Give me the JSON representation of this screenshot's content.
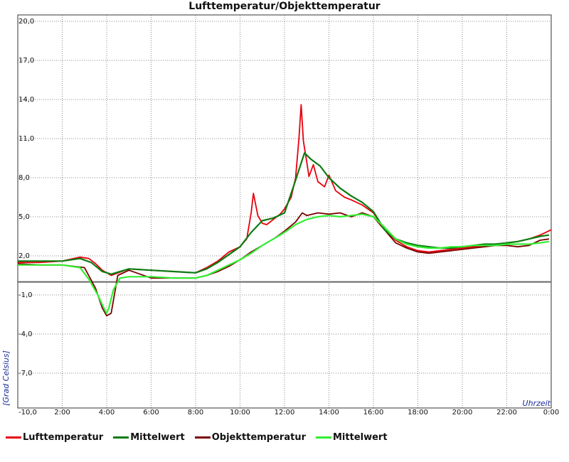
{
  "chart_data": {
    "type": "line",
    "title": "Lufttemperatur/Objekttemperatur",
    "ylabel": "[Grad Celsius]",
    "xlabel": "Uhrzeit",
    "ylim": [
      -10,
      20
    ],
    "xlim": [
      0,
      24
    ],
    "grid": true,
    "legend_position": "bottom",
    "y_ticks": [
      "-10,0",
      "-7,0",
      "-4,0",
      "-1,0",
      "2,0",
      "5,0",
      "8,0",
      "11,0",
      "14,0",
      "17,0",
      "20,0"
    ],
    "x_ticks": [
      {
        "x": 2,
        "label": "2:00"
      },
      {
        "x": 4,
        "label": "4:00"
      },
      {
        "x": 6,
        "label": "6:00"
      },
      {
        "x": 8,
        "label": "8:00"
      },
      {
        "x": 10,
        "label": "10:00"
      },
      {
        "x": 12,
        "label": "12:00"
      },
      {
        "x": 14,
        "label": "14:00"
      },
      {
        "x": 16,
        "label": "16:00"
      },
      {
        "x": 18,
        "label": "18:00"
      },
      {
        "x": 20,
        "label": "20:00"
      },
      {
        "x": 22,
        "label": "22:00"
      },
      {
        "x": 24,
        "label": "0:00"
      }
    ],
    "series": [
      {
        "name": "Lufttemperatur",
        "color": "#e8000d",
        "x": [
          0,
          1,
          2,
          2.8,
          3.2,
          3.5,
          3.8,
          4.2,
          5,
          6,
          7,
          8,
          8.5,
          9,
          9.5,
          10,
          10.3,
          10.5,
          10.6,
          10.8,
          11,
          11.2,
          11.5,
          11.8,
          12,
          12.3,
          12.5,
          12.65,
          12.75,
          12.85,
          13,
          13.1,
          13.3,
          13.5,
          13.8,
          14,
          14.3,
          14.7,
          15,
          15.5,
          16,
          16.5,
          17,
          17.5,
          18,
          18.5,
          19,
          19.5,
          20,
          20.5,
          21,
          21.5,
          22,
          22.5,
          23,
          23.5,
          24
        ],
        "y": [
          1.5,
          1.5,
          1.6,
          1.9,
          1.8,
          1.4,
          0.9,
          0.5,
          1.0,
          0.9,
          0.8,
          0.7,
          1.1,
          1.6,
          2.3,
          2.7,
          3.3,
          5.3,
          6.8,
          5.1,
          4.5,
          4.4,
          4.8,
          5.2,
          5.6,
          6.5,
          8.0,
          11.0,
          13.6,
          10.8,
          9.2,
          8.1,
          9.0,
          7.7,
          7.3,
          8.2,
          7.0,
          6.5,
          6.3,
          5.9,
          5.3,
          4.0,
          3.2,
          2.7,
          2.4,
          2.3,
          2.4,
          2.5,
          2.6,
          2.7,
          2.8,
          2.9,
          3.0,
          3.1,
          3.3,
          3.6,
          4.0
        ]
      },
      {
        "name": "Mittelwert",
        "color": "#0c7c10",
        "x": [
          0,
          1,
          2,
          2.8,
          3.3,
          3.8,
          4.2,
          5,
          6,
          7,
          8,
          8.5,
          9,
          9.5,
          10,
          10.5,
          11,
          11.5,
          12,
          12.4,
          12.9,
          13.2,
          13.6,
          14,
          14.5,
          15,
          15.5,
          16,
          16.5,
          17,
          17.5,
          18,
          18.5,
          19,
          19.5,
          20,
          20.5,
          21,
          21.5,
          22,
          22.5,
          23,
          23.5,
          23.9
        ],
        "y": [
          1.6,
          1.6,
          1.6,
          1.8,
          1.5,
          0.8,
          0.6,
          1.0,
          0.9,
          0.8,
          0.7,
          1.0,
          1.5,
          2.1,
          2.7,
          3.8,
          4.7,
          4.9,
          5.3,
          7.3,
          9.9,
          9.4,
          8.9,
          8.0,
          7.2,
          6.6,
          6.1,
          5.4,
          4.0,
          3.3,
          3.0,
          2.8,
          2.7,
          2.6,
          2.6,
          2.7,
          2.8,
          2.9,
          2.9,
          3.0,
          3.1,
          3.3,
          3.5,
          3.6
        ]
      },
      {
        "name": "Objekttemperatur",
        "color": "#7a0000",
        "x": [
          0,
          1,
          2,
          3,
          3.5,
          3.8,
          4.0,
          4.2,
          4.5,
          5,
          6,
          7,
          8,
          8.5,
          9,
          9.5,
          10,
          10.5,
          11,
          11.5,
          12,
          12.5,
          12.8,
          13,
          13.5,
          14,
          14.5,
          15,
          15.5,
          16,
          16.5,
          17,
          17.5,
          18,
          18.5,
          19,
          19.5,
          20,
          20.5,
          21,
          21.5,
          22,
          22.5,
          23,
          23.5,
          23.9
        ],
        "y": [
          1.4,
          1.3,
          1.3,
          1.1,
          -0.5,
          -2.0,
          -2.6,
          -2.4,
          0.5,
          0.9,
          0.3,
          0.3,
          0.3,
          0.5,
          0.8,
          1.2,
          1.7,
          2.3,
          2.8,
          3.3,
          3.9,
          4.6,
          5.3,
          5.1,
          5.3,
          5.2,
          5.3,
          5.0,
          5.3,
          5.0,
          4.0,
          3.0,
          2.6,
          2.3,
          2.2,
          2.3,
          2.4,
          2.5,
          2.6,
          2.7,
          2.8,
          2.8,
          2.7,
          2.8,
          3.2,
          3.3
        ]
      },
      {
        "name": "Mittelwert",
        "color": "#33ee33",
        "x": [
          0,
          1,
          2,
          2.8,
          3.2,
          3.6,
          3.9,
          4.0,
          4.1,
          4.3,
          4.6,
          5,
          6,
          7,
          8,
          8.5,
          9,
          9.5,
          10,
          10.5,
          11,
          11.5,
          12,
          12.5,
          13,
          13.5,
          14,
          14.5,
          15,
          15.5,
          16,
          16.5,
          17,
          17.5,
          18,
          18.5,
          19,
          19.5,
          20,
          20.5,
          21,
          21.5,
          22,
          22.5,
          23,
          23.5,
          23.9
        ],
        "y": [
          1.3,
          1.3,
          1.3,
          1.1,
          0.2,
          -1.0,
          -2.1,
          -2.4,
          -2.0,
          -0.6,
          0.3,
          0.4,
          0.4,
          0.3,
          0.3,
          0.5,
          0.9,
          1.3,
          1.7,
          2.2,
          2.8,
          3.3,
          3.8,
          4.4,
          4.8,
          5.0,
          5.1,
          5.0,
          5.1,
          5.2,
          5.0,
          4.2,
          3.3,
          2.9,
          2.7,
          2.6,
          2.6,
          2.7,
          2.7,
          2.8,
          2.8,
          2.8,
          2.9,
          2.9,
          2.9,
          3.0,
          3.1
        ]
      }
    ]
  }
}
